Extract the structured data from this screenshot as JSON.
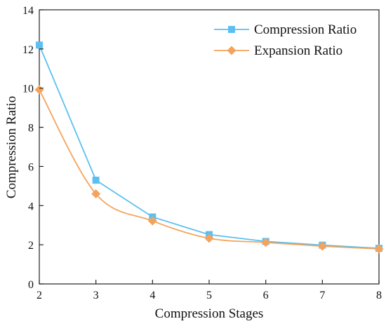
{
  "chart_data": {
    "type": "line",
    "xlabel": "Compression Stages",
    "ylabel": "Compression Ratio",
    "xlim": [
      2,
      8
    ],
    "ylim": [
      0,
      14
    ],
    "xticks": [
      2,
      3,
      4,
      5,
      6,
      7,
      8
    ],
    "yticks": [
      0,
      2,
      4,
      6,
      8,
      10,
      12,
      14
    ],
    "grid": false,
    "legend_position": "top-right",
    "x": [
      2,
      3,
      4,
      5,
      6,
      7,
      8
    ],
    "series": [
      {
        "name": "Compression Ratio",
        "values": [
          12.2,
          5.3,
          3.42,
          2.52,
          2.17,
          1.98,
          1.82
        ],
        "color": "#5bc0f0",
        "marker": "square",
        "smooth": false
      },
      {
        "name": "Expansion Ratio",
        "values": [
          9.92,
          4.6,
          3.22,
          2.33,
          2.12,
          1.93,
          1.79
        ],
        "color": "#f4a35c",
        "marker": "diamond",
        "smooth": true
      }
    ]
  }
}
